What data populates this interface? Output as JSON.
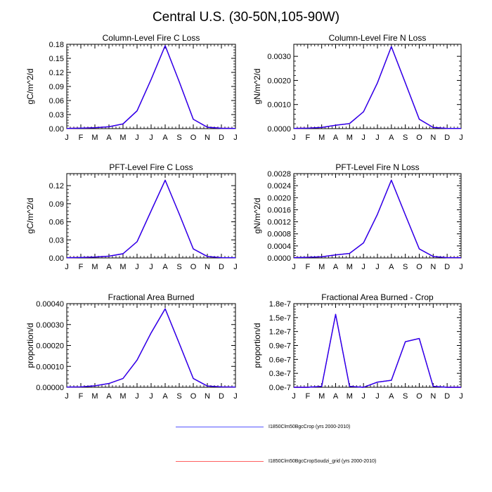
{
  "figure": {
    "title": "Central U.S. (30-50N,105-90W)"
  },
  "legend": [
    {
      "label": "I1850Clm50BgcCrop (yrs 2000-2010)",
      "color": "#5555ff"
    },
    {
      "label": "I1850Clm50BgcCropSoudzi_grid (yrs 2000-2010)",
      "color": "#ff6060"
    }
  ],
  "chart_data": [
    {
      "type": "line",
      "title": "Column-Level Fire C Loss",
      "ylabel": "gC/m^2/d",
      "categories": [
        "J",
        "F",
        "M",
        "A",
        "M",
        "J",
        "J",
        "A",
        "S",
        "O",
        "N",
        "D",
        "J"
      ],
      "ylim": [
        0,
        0.18
      ],
      "yticks": [
        0,
        0.03,
        0.06,
        0.09,
        0.12,
        0.15,
        0.18
      ],
      "ytick_labels": [
        "0.00",
        "0.03",
        "0.06",
        "0.09",
        "0.12",
        "0.15",
        "0.18"
      ],
      "series": [
        {
          "values": [
            0.0005,
            0.001,
            0.002,
            0.004,
            0.01,
            0.038,
            0.105,
            0.177,
            0.1,
            0.02,
            0.003,
            0.0008,
            0.0005
          ],
          "color": "#ff0000"
        },
        {
          "values": [
            0.0005,
            0.001,
            0.002,
            0.004,
            0.01,
            0.038,
            0.105,
            0.177,
            0.1,
            0.02,
            0.003,
            0.0008,
            0.0005
          ],
          "color": "#2000ff"
        }
      ]
    },
    {
      "type": "line",
      "title": "Column-Level Fire N Loss",
      "ylabel": "gN/m^2/d",
      "categories": [
        "J",
        "F",
        "M",
        "A",
        "M",
        "J",
        "J",
        "A",
        "S",
        "O",
        "N",
        "D",
        "J"
      ],
      "ylim": [
        0,
        0.0035
      ],
      "yticks": [
        0,
        0.001,
        0.002,
        0.003
      ],
      "ytick_labels": [
        "0.0000",
        "0.0010",
        "0.0020",
        "0.0030"
      ],
      "series": [
        {
          "values": [
            1e-05,
            2e-05,
            5e-05,
            0.00014,
            0.00021,
            0.0007,
            0.0019,
            0.0034,
            0.0019,
            0.00039,
            5e-05,
            1e-05,
            1e-05
          ],
          "color": "#ff0000"
        },
        {
          "values": [
            1e-05,
            2e-05,
            5e-05,
            0.00014,
            0.00021,
            0.0007,
            0.0019,
            0.0034,
            0.0019,
            0.00039,
            5e-05,
            1e-05,
            1e-05
          ],
          "color": "#2000ff"
        }
      ]
    },
    {
      "type": "line",
      "title": "PFT-Level Fire C Loss",
      "ylabel": "gC/m^2/d",
      "categories": [
        "J",
        "F",
        "M",
        "A",
        "M",
        "J",
        "J",
        "A",
        "S",
        "O",
        "N",
        "D",
        "J"
      ],
      "ylim": [
        0,
        0.14
      ],
      "yticks": [
        0,
        0.03,
        0.06,
        0.09,
        0.12
      ],
      "ytick_labels": [
        "0.00",
        "0.03",
        "0.06",
        "0.09",
        "0.12"
      ],
      "series": [
        {
          "values": [
            0.0003,
            0.0008,
            0.0015,
            0.003,
            0.007,
            0.027,
            0.078,
            0.129,
            0.073,
            0.015,
            0.0025,
            0.0005,
            0.0003
          ],
          "color": "#ff0000"
        },
        {
          "values": [
            0.0003,
            0.0008,
            0.0015,
            0.003,
            0.007,
            0.027,
            0.078,
            0.129,
            0.073,
            0.015,
            0.0025,
            0.0005,
            0.0003
          ],
          "color": "#2000ff"
        }
      ]
    },
    {
      "type": "line",
      "title": "PFT-Level Fire N Loss",
      "ylabel": "gN/m^2/d",
      "categories": [
        "J",
        "F",
        "M",
        "A",
        "M",
        "J",
        "J",
        "A",
        "S",
        "O",
        "N",
        "D",
        "J"
      ],
      "ylim": [
        0,
        0.0028
      ],
      "yticks": [
        0,
        0.0004,
        0.0008,
        0.0012,
        0.0016,
        0.002,
        0.0024,
        0.0028
      ],
      "ytick_labels": [
        "0.0000",
        "0.0004",
        "0.0008",
        "0.0012",
        "0.0016",
        "0.0020",
        "0.0024",
        "0.0028"
      ],
      "series": [
        {
          "values": [
            1e-05,
            2e-05,
            4e-05,
            0.0001,
            0.00015,
            0.0005,
            0.00145,
            0.00258,
            0.00143,
            0.0003,
            5e-05,
            1e-05,
            1e-05
          ],
          "color": "#ff0000"
        },
        {
          "values": [
            1e-05,
            2e-05,
            4e-05,
            0.0001,
            0.00015,
            0.0005,
            0.00145,
            0.00258,
            0.00143,
            0.0003,
            5e-05,
            1e-05,
            1e-05
          ],
          "color": "#2000ff"
        }
      ]
    },
    {
      "type": "line",
      "title": "Fractional Area Burned",
      "ylabel": "proportion/d",
      "categories": [
        "J",
        "F",
        "M",
        "A",
        "M",
        "J",
        "J",
        "A",
        "S",
        "O",
        "N",
        "D",
        "J"
      ],
      "ylim": [
        0,
        0.0004
      ],
      "yticks": [
        0,
        0.0001,
        0.0002,
        0.0003,
        0.0004
      ],
      "ytick_labels": [
        "0.00000",
        "0.00010",
        "0.00020",
        "0.00030",
        "0.00040"
      ],
      "series": [
        {
          "values": [
            1e-06,
            2e-06,
            7e-06,
            1.8e-05,
            4.2e-05,
            0.00013,
            0.00026,
            0.000375,
            0.00021,
            4.2e-05,
            6e-06,
            2e-06,
            1e-06
          ],
          "color": "#ff0000"
        },
        {
          "values": [
            1e-06,
            2e-06,
            7e-06,
            1.8e-05,
            4.2e-05,
            0.00013,
            0.00026,
            0.000375,
            0.00021,
            4.2e-05,
            6e-06,
            2e-06,
            1e-06
          ],
          "color": "#2000ff"
        }
      ]
    },
    {
      "type": "line",
      "title": "Fractional Area Burned - Crop",
      "ylabel": "proportion/d",
      "categories": [
        "J",
        "F",
        "M",
        "A",
        "M",
        "J",
        "J",
        "A",
        "S",
        "O",
        "N",
        "D",
        "J"
      ],
      "ylim": [
        0,
        1.8e-07
      ],
      "yticks": [
        0,
        3e-08,
        6e-08,
        9e-08,
        1.2e-07,
        1.5e-07,
        1.8e-07
      ],
      "ytick_labels": [
        "0.0e-7",
        "0.3e-7",
        "0.6e-7",
        "0.9e-7",
        "1.2e-7",
        "1.5e-7",
        "1.8e-7"
      ],
      "series": [
        {
          "values": [
            0,
            0,
            2e-09,
            1.57e-07,
            2e-09,
            0,
            1.1e-08,
            1.5e-08,
            9.8e-08,
            1.05e-07,
            2e-09,
            0,
            0
          ],
          "color": "#ff0000"
        },
        {
          "values": [
            0,
            0,
            2e-09,
            1.57e-07,
            2e-09,
            0,
            1.1e-08,
            1.5e-08,
            9.8e-08,
            1.05e-07,
            2e-09,
            0,
            0
          ],
          "color": "#2000ff"
        }
      ]
    }
  ]
}
